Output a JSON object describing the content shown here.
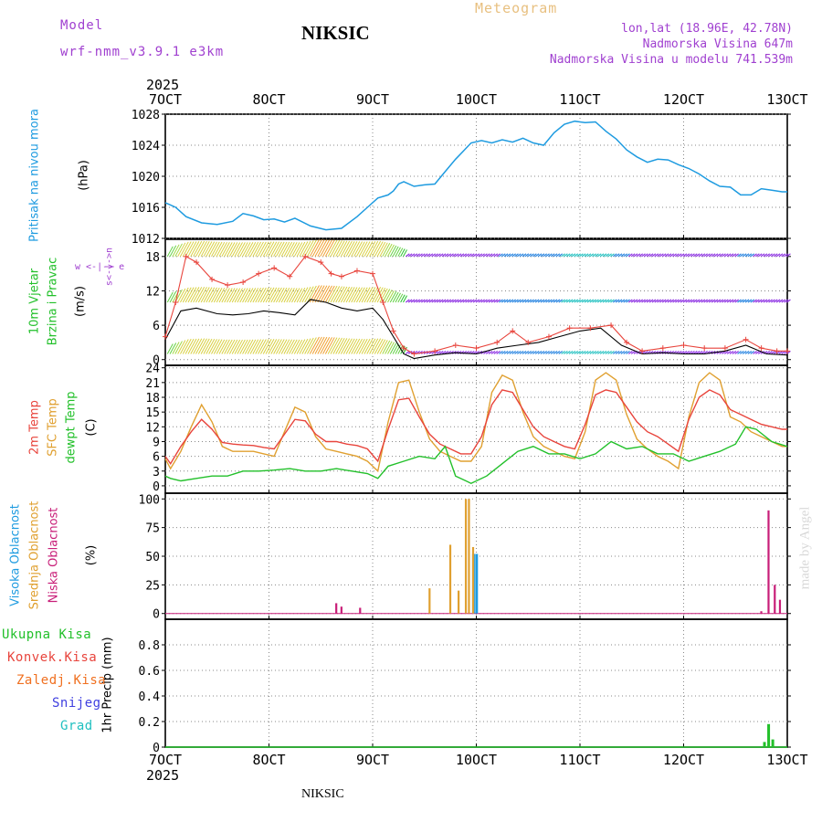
{
  "header": {
    "model_label": "Model",
    "model_name": "wrf-nmm_v3.9.1  e3km",
    "station": "NIKSIC",
    "product": "Meteogram",
    "coords": "lon,lat (18.96E, 42.78N)",
    "elevation": "Nadmorska Visina 647m",
    "model_elevation": "Nadmorska Visina u modelu 741.539m",
    "year_top": "2025",
    "year_bottom": "2025",
    "footer_station": "NIKSIC",
    "watermark": "made by Angel"
  },
  "colors": {
    "pressure": "#1e9be0",
    "temp2m": "#e8443c",
    "sfc": "#e0a030",
    "dewpt": "#22c02a",
    "high_cloud": "#1e9be0",
    "mid_cloud": "#e0a030",
    "low_cloud": "#c81e78",
    "total_precip": "#22c02a",
    "conv": "#e8443c",
    "frozen": "#f07020",
    "snow": "#4040e0",
    "hail": "#20c0c0",
    "wind_label": "#22c02a",
    "wind_legend": "#a040d0",
    "model": "#a040d0",
    "meteogram": "#e8c080"
  },
  "chart_data": [
    {
      "type": "line",
      "title": "Pritisak na nivou mora",
      "ylabel_name": "Pritisak na nivou mora",
      "yunit": "(hPa)",
      "x_ticks": [
        "7OCT",
        "8OCT",
        "9OCT",
        "10OCT",
        "11OCT",
        "12OCT",
        "13OCT"
      ],
      "xlim": [
        7,
        13
      ],
      "ylim": [
        1012,
        1028
      ],
      "yticks": [
        1012,
        1016,
        1020,
        1024,
        1028
      ],
      "series": [
        {
          "name": "pressure",
          "x": [
            7.0,
            7.1,
            7.2,
            7.35,
            7.5,
            7.65,
            7.75,
            7.85,
            7.95,
            8.05,
            8.15,
            8.25,
            8.4,
            8.55,
            8.7,
            8.85,
            8.95,
            9.05,
            9.15,
            9.2,
            9.25,
            9.3,
            9.4,
            9.5,
            9.6,
            9.7,
            9.8,
            9.9,
            9.95,
            10.05,
            10.15,
            10.25,
            10.35,
            10.45,
            10.55,
            10.65,
            10.75,
            10.85,
            10.95,
            11.05,
            11.15,
            11.25,
            11.35,
            11.45,
            11.55,
            11.65,
            11.75,
            11.85,
            11.95,
            12.05,
            12.15,
            12.25,
            12.35,
            12.45,
            12.55,
            12.65,
            12.75,
            12.85,
            12.95,
            13.0
          ],
          "values": [
            1016.6,
            1016.0,
            1014.8,
            1014.0,
            1013.8,
            1014.2,
            1015.2,
            1014.9,
            1014.4,
            1014.5,
            1014.1,
            1014.6,
            1013.6,
            1013.1,
            1013.3,
            1014.8,
            1016.0,
            1017.2,
            1017.6,
            1018.1,
            1019.0,
            1019.3,
            1018.7,
            1018.9,
            1019.0,
            1020.6,
            1022.2,
            1023.6,
            1024.3,
            1024.6,
            1024.3,
            1024.7,
            1024.4,
            1024.9,
            1024.3,
            1024.0,
            1025.6,
            1026.7,
            1027.1,
            1026.9,
            1027.0,
            1025.8,
            1024.8,
            1023.4,
            1022.5,
            1021.8,
            1022.2,
            1022.1,
            1021.5,
            1021.0,
            1020.3,
            1019.4,
            1018.7,
            1018.6,
            1017.6,
            1017.6,
            1018.4,
            1018.2,
            1018.0,
            1018.0
          ]
        }
      ]
    },
    {
      "type": "line",
      "title": "10m Vjetar Brzina i Pravac",
      "ylabel_name_1": "10m Vjetar",
      "ylabel_name_2": "Brzina i Pravac",
      "yunit": "(m/s)",
      "dir_legend": "w <-|-> e",
      "dir_legend_2": "s<-|->n",
      "xlim": [
        7,
        13
      ],
      "ylim": [
        -1,
        21
      ],
      "yticks": [
        0,
        6,
        12,
        18
      ],
      "series": [
        {
          "name": "speed",
          "x": [
            7.0,
            7.15,
            7.3,
            7.5,
            7.65,
            7.8,
            7.95,
            8.1,
            8.25,
            8.4,
            8.55,
            8.7,
            8.85,
            9.0,
            9.1,
            9.2,
            9.3,
            9.4,
            9.6,
            9.8,
            10.0,
            10.2,
            10.4,
            10.6,
            10.8,
            11.0,
            11.2,
            11.4,
            11.6,
            11.8,
            12.0,
            12.2,
            12.4,
            12.6,
            12.8,
            13.0
          ],
          "values": [
            3.5,
            8.5,
            9.0,
            8.0,
            7.8,
            8.0,
            8.5,
            8.2,
            7.8,
            10.5,
            10.0,
            9.0,
            8.5,
            9.0,
            7.0,
            4.0,
            1.0,
            0.2,
            0.8,
            1.2,
            1.0,
            2.0,
            2.5,
            3.0,
            4.0,
            5.0,
            5.5,
            2.5,
            1.0,
            1.2,
            1.0,
            1.0,
            1.5,
            2.5,
            1.0,
            0.8
          ]
        },
        {
          "name": "gust",
          "x": [
            7.0,
            7.1,
            7.2,
            7.3,
            7.45,
            7.6,
            7.75,
            7.9,
            8.05,
            8.2,
            8.35,
            8.5,
            8.6,
            8.7,
            8.85,
            9.0,
            9.1,
            9.2,
            9.3,
            9.4,
            9.6,
            9.8,
            10.0,
            10.2,
            10.35,
            10.5,
            10.7,
            10.9,
            11.1,
            11.3,
            11.45,
            11.6,
            11.8,
            12.0,
            12.2,
            12.4,
            12.6,
            12.75,
            12.9,
            13.0
          ],
          "values": [
            4.0,
            10.0,
            18.0,
            17.0,
            14.0,
            13.0,
            13.5,
            15.0,
            16.0,
            14.5,
            18.0,
            17.0,
            15.0,
            14.5,
            15.5,
            15.0,
            10.0,
            5.0,
            2.0,
            1.0,
            1.5,
            2.5,
            2.0,
            3.0,
            5.0,
            3.0,
            4.0,
            5.5,
            5.5,
            6.0,
            3.0,
            1.5,
            2.0,
            2.5,
            2.0,
            2.0,
            3.5,
            2.0,
            1.5,
            1.5
          ]
        }
      ],
      "barb_rows": [
        1,
        10,
        18
      ]
    },
    {
      "type": "line",
      "title": "2m Temp / SFC Temp / dewpt Temp",
      "ylabel_t2m": "2m Temp",
      "ylabel_sfc": "SFC Temp",
      "ylabel_dew": "dewpt Temp",
      "yunit": "(C)",
      "xlim": [
        7,
        13
      ],
      "ylim": [
        -1.5,
        24.5
      ],
      "yticks": [
        0,
        3,
        6,
        9,
        12,
        15,
        18,
        21,
        24
      ],
      "series": [
        {
          "name": "2m Temp",
          "x": [
            7.0,
            7.05,
            7.15,
            7.25,
            7.35,
            7.45,
            7.55,
            7.65,
            7.75,
            7.85,
            7.95,
            8.05,
            8.15,
            8.25,
            8.35,
            8.45,
            8.55,
            8.65,
            8.75,
            8.85,
            8.95,
            9.05,
            9.15,
            9.25,
            9.35,
            9.45,
            9.55,
            9.65,
            9.75,
            9.85,
            9.95,
            10.05,
            10.15,
            10.25,
            10.35,
            10.45,
            10.55,
            10.65,
            10.75,
            10.85,
            10.95,
            11.05,
            11.15,
            11.25,
            11.35,
            11.45,
            11.55,
            11.65,
            11.75,
            11.85,
            11.95,
            12.05,
            12.15,
            12.25,
            12.35,
            12.45,
            12.55,
            12.65,
            12.75,
            12.85,
            12.95,
            13.0
          ],
          "values": [
            6.0,
            4.5,
            8.0,
            11.0,
            13.5,
            11.5,
            8.8,
            8.5,
            8.3,
            8.2,
            7.8,
            7.5,
            10.5,
            13.5,
            13.2,
            10.5,
            9.0,
            9.0,
            8.5,
            8.2,
            7.5,
            5.0,
            11.5,
            17.5,
            17.8,
            14.0,
            10.5,
            8.5,
            7.5,
            6.5,
            6.5,
            10.0,
            16.5,
            19.5,
            19.0,
            15.5,
            12.0,
            10.0,
            9.0,
            8.0,
            7.5,
            12.5,
            18.5,
            19.5,
            19.0,
            16.0,
            13.0,
            11.0,
            10.0,
            8.5,
            7.0,
            13.5,
            18.0,
            19.5,
            18.5,
            15.5,
            14.5,
            13.5,
            12.5,
            12.0,
            11.5,
            11.5
          ]
        },
        {
          "name": "SFC Temp",
          "x": [
            7.0,
            7.05,
            7.15,
            7.25,
            7.35,
            7.45,
            7.55,
            7.65,
            7.75,
            7.85,
            7.95,
            8.05,
            8.15,
            8.25,
            8.35,
            8.45,
            8.55,
            8.65,
            8.75,
            8.85,
            8.95,
            9.05,
            9.15,
            9.25,
            9.35,
            9.45,
            9.55,
            9.65,
            9.75,
            9.85,
            9.95,
            10.05,
            10.15,
            10.25,
            10.35,
            10.45,
            10.55,
            10.65,
            10.75,
            10.85,
            10.95,
            11.05,
            11.15,
            11.25,
            11.35,
            11.45,
            11.55,
            11.65,
            11.75,
            11.85,
            11.95,
            12.05,
            12.15,
            12.25,
            12.35,
            12.45,
            12.55,
            12.65,
            12.75,
            12.85,
            12.95,
            13.0
          ],
          "values": [
            5.5,
            3.5,
            7.0,
            12.0,
            16.5,
            13.0,
            8.0,
            7.0,
            7.0,
            7.0,
            6.5,
            6.0,
            11.0,
            16.0,
            15.0,
            10.0,
            7.5,
            7.0,
            6.5,
            6.0,
            5.0,
            3.0,
            13.0,
            21.0,
            21.5,
            15.0,
            9.5,
            7.0,
            6.0,
            5.0,
            5.0,
            8.0,
            19.0,
            22.5,
            21.5,
            15.0,
            10.0,
            8.0,
            7.0,
            6.0,
            5.5,
            11.0,
            21.5,
            23.0,
            21.5,
            14.5,
            9.5,
            7.5,
            6.0,
            5.0,
            3.5,
            14.0,
            21.0,
            23.0,
            21.5,
            14.0,
            13.0,
            11.0,
            10.0,
            9.0,
            8.0,
            8.0
          ]
        },
        {
          "name": "dewpt Temp",
          "x": [
            7.0,
            7.05,
            7.15,
            7.3,
            7.45,
            7.6,
            7.75,
            7.9,
            8.05,
            8.2,
            8.35,
            8.5,
            8.65,
            8.8,
            8.95,
            9.05,
            9.15,
            9.3,
            9.45,
            9.6,
            9.7,
            9.8,
            9.95,
            10.1,
            10.25,
            10.4,
            10.55,
            10.7,
            10.85,
            11.0,
            11.15,
            11.3,
            11.45,
            11.6,
            11.75,
            11.9,
            12.05,
            12.2,
            12.35,
            12.5,
            12.6,
            12.7,
            12.85,
            13.0
          ],
          "values": [
            2.0,
            1.5,
            1.0,
            1.5,
            2.0,
            2.0,
            3.0,
            3.0,
            3.2,
            3.5,
            3.0,
            3.0,
            3.5,
            3.0,
            2.5,
            1.5,
            4.0,
            5.0,
            6.0,
            5.5,
            8.0,
            2.0,
            0.5,
            2.0,
            4.5,
            7.0,
            8.0,
            6.5,
            6.5,
            5.5,
            6.5,
            9.0,
            7.5,
            8.0,
            6.5,
            6.5,
            5.0,
            6.0,
            7.0,
            8.5,
            12.0,
            11.5,
            9.0,
            8.0
          ]
        }
      ]
    },
    {
      "type": "bar",
      "title": "Oblacnost",
      "ylabel_high": "Visoka Oblacnost",
      "ylabel_mid": "Srednja Oblacnost",
      "ylabel_low": "Niska Oblacnost",
      "yunit": "(%)",
      "xlim": [
        7,
        13
      ],
      "ylim": [
        -5,
        105
      ],
      "yticks": [
        0,
        25,
        50,
        75,
        100
      ],
      "series": [
        {
          "name": "high",
          "x": [
            9.97,
            10.0
          ],
          "values": [
            52,
            52
          ]
        },
        {
          "name": "mid",
          "x": [
            9.55,
            9.75,
            9.83,
            9.9,
            9.93,
            9.97
          ],
          "values": [
            22,
            60,
            20,
            100,
            100,
            58
          ]
        },
        {
          "name": "low",
          "x": [
            8.65,
            8.7,
            8.88,
            12.75,
            12.82,
            12.88,
            12.93
          ],
          "values": [
            9,
            6,
            5,
            2,
            90,
            25,
            12
          ]
        }
      ]
    },
    {
      "type": "bar",
      "title": "1hr Precip",
      "ylabel": "1hr Precip (mm)",
      "legend": [
        "Ukupna Kisa",
        "Konvek.Kisa",
        "Zaledj.Kisa",
        "Snijeg",
        "Grad"
      ],
      "xlim": [
        7,
        13
      ],
      "ylim": [
        0,
        1.0
      ],
      "yticks": [
        0,
        0.2,
        0.4,
        0.6,
        0.8
      ],
      "series": [
        {
          "name": "Ukupna Kisa",
          "x": [
            12.78,
            12.82,
            12.86
          ],
          "values": [
            0.04,
            0.18,
            0.06
          ]
        }
      ]
    }
  ]
}
